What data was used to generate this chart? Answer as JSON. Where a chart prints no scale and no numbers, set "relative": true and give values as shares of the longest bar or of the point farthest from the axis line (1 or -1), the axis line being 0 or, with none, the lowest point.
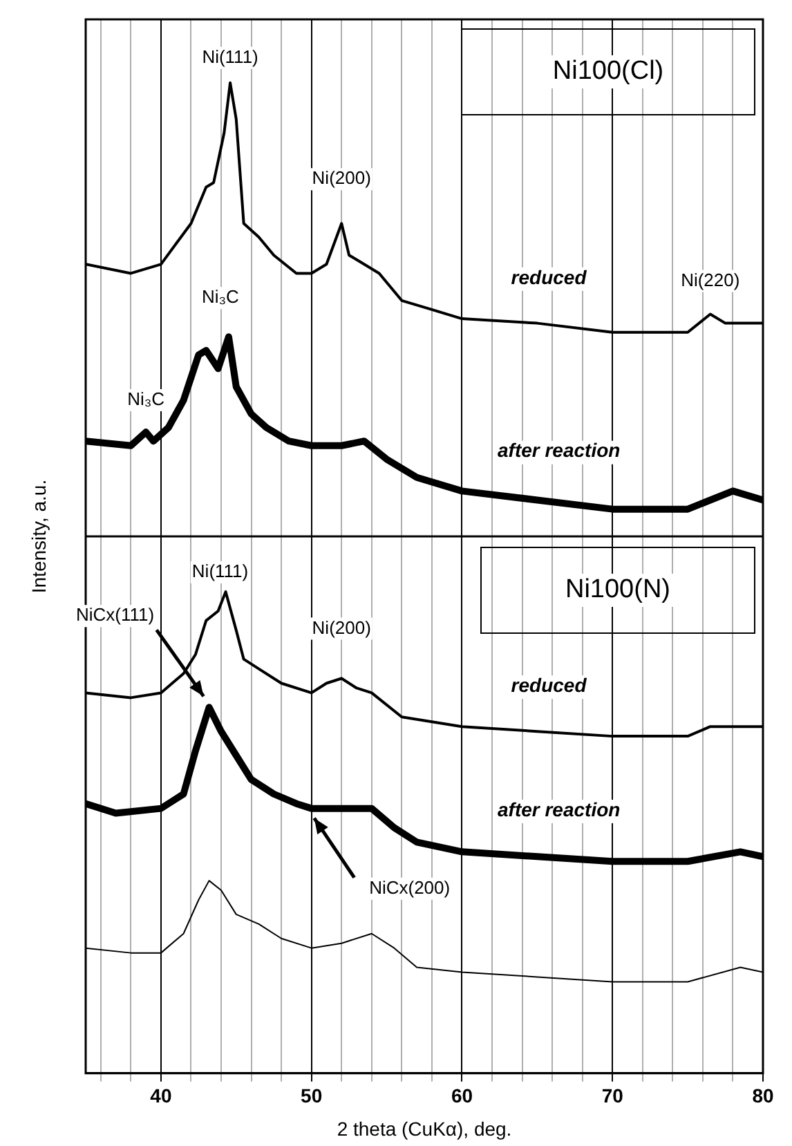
{
  "chart_data": [
    {
      "type": "line",
      "title": "Ni100(Cl)",
      "ylabel": "Intensity, a.u.",
      "relative": true,
      "grid": "x",
      "legend": false,
      "tick_labels": false,
      "marker": "none",
      "line_style": "solid",
      "xlim": [
        35,
        80
      ],
      "xticks": [
        {
          "value": 36,
          "label": null
        },
        {
          "value": 38,
          "label": null
        },
        40,
        {
          "value": 42,
          "label": null
        },
        {
          "value": 44,
          "label": null
        },
        {
          "value": 46,
          "label": null
        },
        {
          "value": 48,
          "label": null
        },
        50,
        {
          "value": 52,
          "label": null
        },
        {
          "value": 54,
          "label": null
        },
        {
          "value": 56,
          "label": null
        },
        {
          "value": 58,
          "label": null
        },
        60,
        {
          "value": 62,
          "label": null
        },
        {
          "value": 64,
          "label": null
        },
        {
          "value": 66,
          "label": null
        },
        {
          "value": 68,
          "label": null
        },
        70,
        {
          "value": 72,
          "label": null
        },
        {
          "value": 74,
          "label": null
        },
        {
          "value": 76,
          "label": null
        },
        {
          "value": 78,
          "label": null
        },
        80
      ],
      "series": [
        {
          "name": "reduced",
          "color": "#000000",
          "x": [
            35,
            38,
            40,
            42,
            43,
            43.5,
            44.2,
            44.6,
            45,
            45.5,
            46.5,
            47.5,
            49,
            50,
            51,
            52,
            52.5,
            53.5,
            54.5,
            56,
            58,
            60,
            65,
            70,
            75,
            76.5,
            77.5,
            80
          ],
          "values": [
            0.6,
            0.58,
            0.6,
            0.69,
            0.77,
            0.78,
            0.89,
            1.0,
            0.92,
            0.69,
            0.66,
            0.62,
            0.58,
            0.58,
            0.6,
            0.69,
            0.62,
            0.6,
            0.58,
            0.52,
            0.5,
            0.48,
            0.47,
            0.45,
            0.45,
            0.49,
            0.47,
            0.47
          ]
        },
        {
          "name": "after reaction",
          "color": "#000000",
          "x": [
            35,
            38,
            39,
            39.5,
            40.5,
            41.5,
            42.5,
            43,
            43.8,
            44.5,
            45,
            46,
            47,
            48.5,
            50,
            52,
            53.5,
            55,
            57,
            60,
            65,
            70,
            75,
            78,
            80
          ],
          "values": [
            0.21,
            0.2,
            0.23,
            0.21,
            0.24,
            0.3,
            0.4,
            0.41,
            0.37,
            0.44,
            0.33,
            0.27,
            0.24,
            0.21,
            0.2,
            0.2,
            0.21,
            0.17,
            0.13,
            0.1,
            0.08,
            0.06,
            0.06,
            0.1,
            0.08
          ]
        }
      ],
      "annotations": [
        {
          "text": "Ni(111)",
          "x": 44.6,
          "y": 1.0
        },
        {
          "text": "Ni(200)",
          "x": 52,
          "y": 0.69
        },
        {
          "text": "Ni(220)",
          "x": 76.5,
          "y": 0.49
        },
        {
          "text": "Ni₃C",
          "x": 44.5,
          "y": 0.44
        },
        {
          "text": "Ni₃C",
          "x": 39,
          "y": 0.23
        }
      ]
    },
    {
      "type": "line",
      "title": "Ni100(N)",
      "xlabel": "2 theta (CuKα), deg.",
      "relative": true,
      "grid": "x",
      "legend": false,
      "tick_labels": "x",
      "marker": "none",
      "line_style": "solid",
      "xlim": [
        35,
        80
      ],
      "xticks": [
        {
          "value": 36,
          "label": null
        },
        {
          "value": 38,
          "label": null
        },
        40,
        {
          "value": 42,
          "label": null
        },
        {
          "value": 44,
          "label": null
        },
        {
          "value": 46,
          "label": null
        },
        {
          "value": 48,
          "label": null
        },
        50,
        {
          "value": 52,
          "label": null
        },
        {
          "value": 54,
          "label": null
        },
        {
          "value": 56,
          "label": null
        },
        {
          "value": 58,
          "label": null
        },
        60,
        {
          "value": 62,
          "label": null
        },
        {
          "value": 64,
          "label": null
        },
        {
          "value": 66,
          "label": null
        },
        {
          "value": 68,
          "label": null
        },
        70,
        {
          "value": 72,
          "label": null
        },
        {
          "value": 74,
          "label": null
        },
        {
          "value": 76,
          "label": null
        },
        {
          "value": 78,
          "label": null
        },
        80
      ],
      "series": [
        {
          "name": "reduced",
          "color": "#000000",
          "x": [
            35,
            38,
            40,
            41.5,
            42.3,
            43,
            43.8,
            44.3,
            45,
            45.5,
            46.5,
            48,
            50,
            51,
            52,
            53,
            54,
            56,
            58,
            60,
            65,
            70,
            75,
            76.5,
            80
          ],
          "values": [
            0.79,
            0.78,
            0.79,
            0.83,
            0.87,
            0.94,
            0.96,
            1.0,
            0.92,
            0.86,
            0.84,
            0.81,
            0.79,
            0.81,
            0.82,
            0.8,
            0.79,
            0.74,
            0.73,
            0.72,
            0.71,
            0.7,
            0.7,
            0.72,
            0.72
          ]
        },
        {
          "name": "after reaction",
          "color": "#000000",
          "x": [
            35,
            37,
            40,
            41.5,
            42.3,
            43.2,
            44,
            45,
            46,
            47.5,
            49,
            50,
            52,
            54,
            55.5,
            57,
            60,
            65,
            70,
            75,
            78.5,
            80
          ],
          "values": [
            0.56,
            0.54,
            0.55,
            0.58,
            0.67,
            0.76,
            0.71,
            0.66,
            0.61,
            0.58,
            0.56,
            0.55,
            0.55,
            0.55,
            0.51,
            0.48,
            0.46,
            0.45,
            0.44,
            0.44,
            0.46,
            0.45
          ]
        },
        {
          "color": "#000000",
          "x": [
            35,
            38,
            40,
            41.5,
            42.5,
            43.2,
            44,
            45,
            46.5,
            48,
            50,
            52,
            54,
            55.5,
            57,
            60,
            65,
            70,
            75,
            78.5,
            80
          ],
          "values": [
            0.26,
            0.25,
            0.25,
            0.29,
            0.36,
            0.4,
            0.38,
            0.33,
            0.31,
            0.28,
            0.26,
            0.27,
            0.29,
            0.26,
            0.22,
            0.21,
            0.2,
            0.19,
            0.19,
            0.22,
            0.21
          ]
        }
      ],
      "annotations": [
        {
          "text": "Ni(111)",
          "x": 44.3,
          "y": 1.0
        },
        {
          "text": "Ni(200)",
          "x": 52,
          "y": 0.82
        },
        {
          "text": "NiCx(111)",
          "x": 43.2,
          "y": 0.76
        },
        {
          "text": "NiCx(200)",
          "x": 50,
          "y": 0.55
        }
      ]
    }
  ]
}
